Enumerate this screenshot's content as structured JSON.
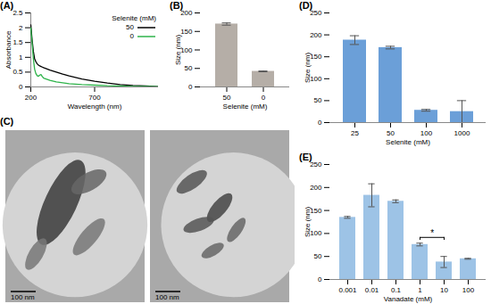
{
  "chart_data": [
    {
      "type": "line",
      "title": "(A)",
      "ylabel": "Absorbance",
      "xlabel": "Wavelength (nm)",
      "x": [
        200,
        210,
        220,
        230,
        240,
        250,
        260,
        270,
        280,
        290,
        300,
        350,
        400,
        450,
        500,
        600,
        700,
        800,
        900,
        1000,
        1100,
        1200
      ],
      "series": [
        {
          "name": "50",
          "color": "#000000",
          "values": [
            2.1,
            1.6,
            1.2,
            0.95,
            0.85,
            0.78,
            0.74,
            0.71,
            0.69,
            0.67,
            0.65,
            0.57,
            0.5,
            0.43,
            0.37,
            0.27,
            0.19,
            0.13,
            0.08,
            0.05,
            0.03,
            0.01
          ]
        },
        {
          "name": "0",
          "color": "#2eb34a",
          "values": [
            2.0,
            1.5,
            0.95,
            0.6,
            0.45,
            0.38,
            0.36,
            0.4,
            0.42,
            0.35,
            0.3,
            0.22,
            0.17,
            0.14,
            0.11,
            0.08,
            0.06,
            0.04,
            0.03,
            0.02,
            0.015,
            0.01
          ]
        }
      ],
      "legend_title": "Selenite (mM)",
      "legend": "top-right",
      "xlim": [
        200,
        1200
      ],
      "xticks": [
        200,
        700
      ],
      "ylim": [
        0,
        2.5
      ],
      "yticks": [
        0,
        0.5,
        1,
        1.5,
        2,
        2.5
      ]
    },
    {
      "type": "bar",
      "title": "(B)",
      "ylabel": "Size (nm)",
      "xlabel": "Selenite (mM)",
      "categories": [
        "50",
        "0"
      ],
      "values": [
        170,
        42
      ],
      "errors": [
        3,
        1
      ],
      "color": "#b5aea7",
      "ylim": [
        0,
        200
      ],
      "yticks": [
        0,
        50,
        100,
        150,
        200
      ]
    },
    {
      "type": "image",
      "title": "(C)",
      "images": [
        {
          "scale_bar": "100 nm"
        },
        {
          "scale_bar": "100 nm"
        }
      ]
    },
    {
      "type": "bar",
      "title": "(D)",
      "ylabel": "Size (nm)",
      "xlabel": "Selenite (mM)",
      "categories": [
        "25",
        "50",
        "100",
        "1000"
      ],
      "values": [
        188,
        171,
        28,
        25
      ],
      "errors": [
        10,
        3,
        2,
        25
      ],
      "color": "#6b9fd8",
      "ylim": [
        0,
        250
      ],
      "yticks": [
        0,
        50,
        100,
        150,
        200,
        250
      ]
    },
    {
      "type": "bar",
      "title": "(E)",
      "ylabel": "Size (nm)",
      "xlabel": "Vanadate (mM)",
      "categories": [
        "0.001",
        "0.01",
        "0.1",
        "1",
        "10",
        "100"
      ],
      "values": [
        135,
        183,
        170,
        76,
        38,
        45
      ],
      "errors": [
        2,
        25,
        3,
        3,
        12,
        1
      ],
      "color": "#9dc3e6",
      "annotations": [
        {
          "text": "*",
          "between": [
            "1",
            "10"
          ]
        }
      ],
      "ylim": [
        0,
        250
      ],
      "yticks": [
        0,
        50,
        100,
        150,
        200,
        250
      ]
    }
  ]
}
